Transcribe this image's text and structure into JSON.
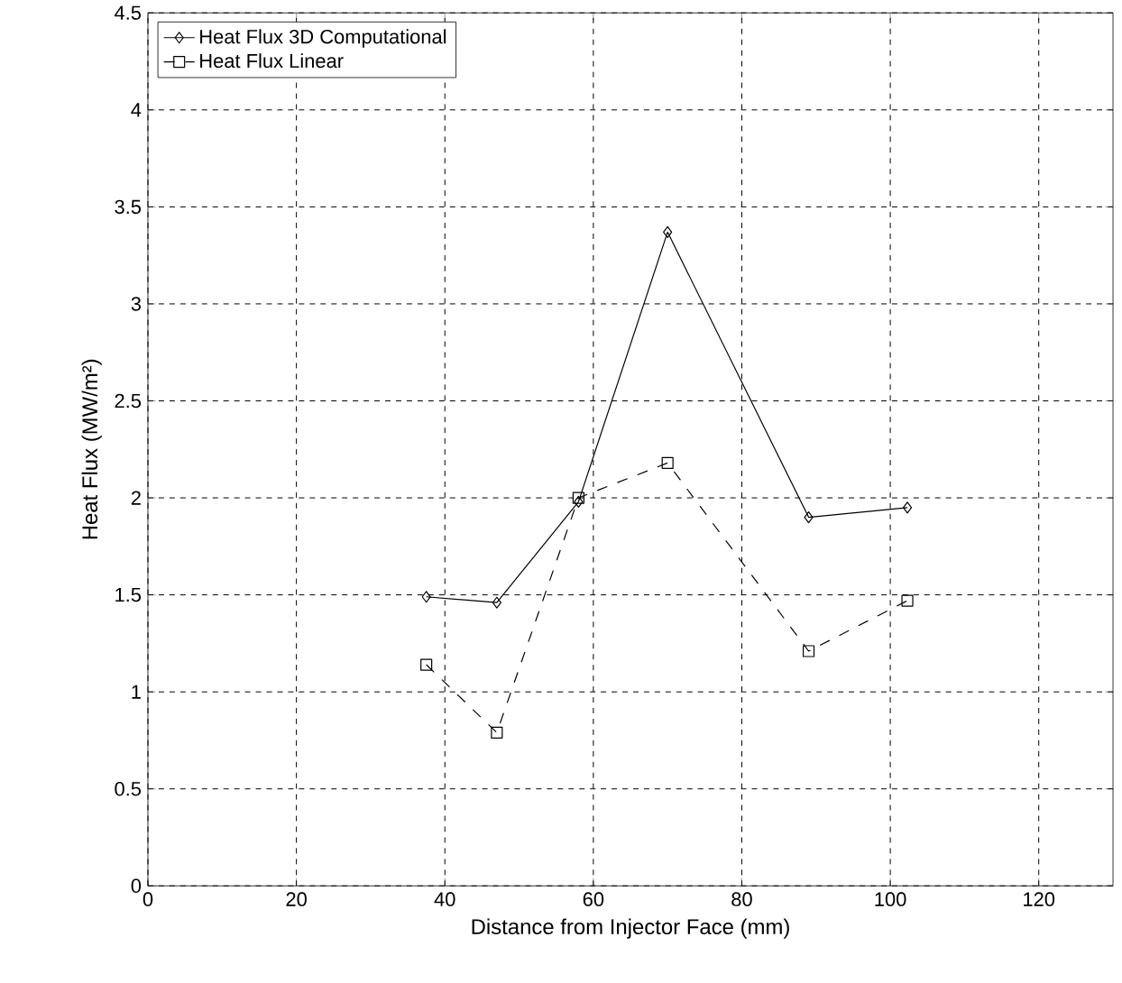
{
  "chart_data": {
    "type": "line",
    "xlabel": "Distance from Injector Face (mm)",
    "ylabel": "Heat Flux (MW/m²)",
    "xlim": [
      0,
      130
    ],
    "xticks": [
      0,
      20,
      40,
      60,
      80,
      100,
      120
    ],
    "ylim": [
      0,
      4.5
    ],
    "yticks": [
      0,
      0.5,
      1,
      1.5,
      2,
      2.5,
      3,
      3.5,
      4,
      4.5
    ],
    "grid": true,
    "legend": "top left",
    "series": [
      {
        "name": "Heat Flux 3D Computational",
        "color": "#000000",
        "marker": "diamond",
        "line_style": "solid",
        "x": [
          37.5,
          47,
          58,
          70,
          89,
          102.3
        ],
        "values": [
          1.49,
          1.46,
          1.98,
          3.37,
          1.9,
          1.95
        ]
      },
      {
        "name": "Heat Flux Linear",
        "color": "#000000",
        "marker": "square",
        "line_style": "dashed",
        "x": [
          37.5,
          47,
          58,
          70,
          89,
          102.3
        ],
        "values": [
          1.14,
          0.79,
          2.0,
          2.18,
          1.21,
          1.47
        ]
      }
    ]
  }
}
